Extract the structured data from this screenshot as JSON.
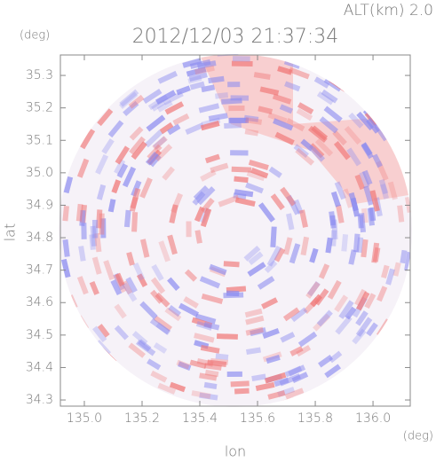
{
  "chart_data": {
    "type": "radar",
    "title": "2012/12/03 21:37:34",
    "altitude_label": "ALT(km) 2.0",
    "x_label": "lon",
    "y_label": "lat",
    "x_unit": "(deg)",
    "y_unit": "(deg)",
    "xlim": [
      134.917,
      136.129
    ],
    "ylim": [
      34.281,
      35.363
    ],
    "xticks": [
      {
        "value": 135.0,
        "label": "135.0"
      },
      135.2,
      135.4,
      135.6,
      135.8,
      {
        "value": 136.0,
        "label": "136.0"
      }
    ],
    "yticks": [
      34.3,
      34.4,
      34.5,
      34.6,
      34.7,
      34.8,
      34.9,
      {
        "value": 35.0,
        "label": "35.0"
      },
      35.1,
      35.2,
      35.3
    ]
  }
}
